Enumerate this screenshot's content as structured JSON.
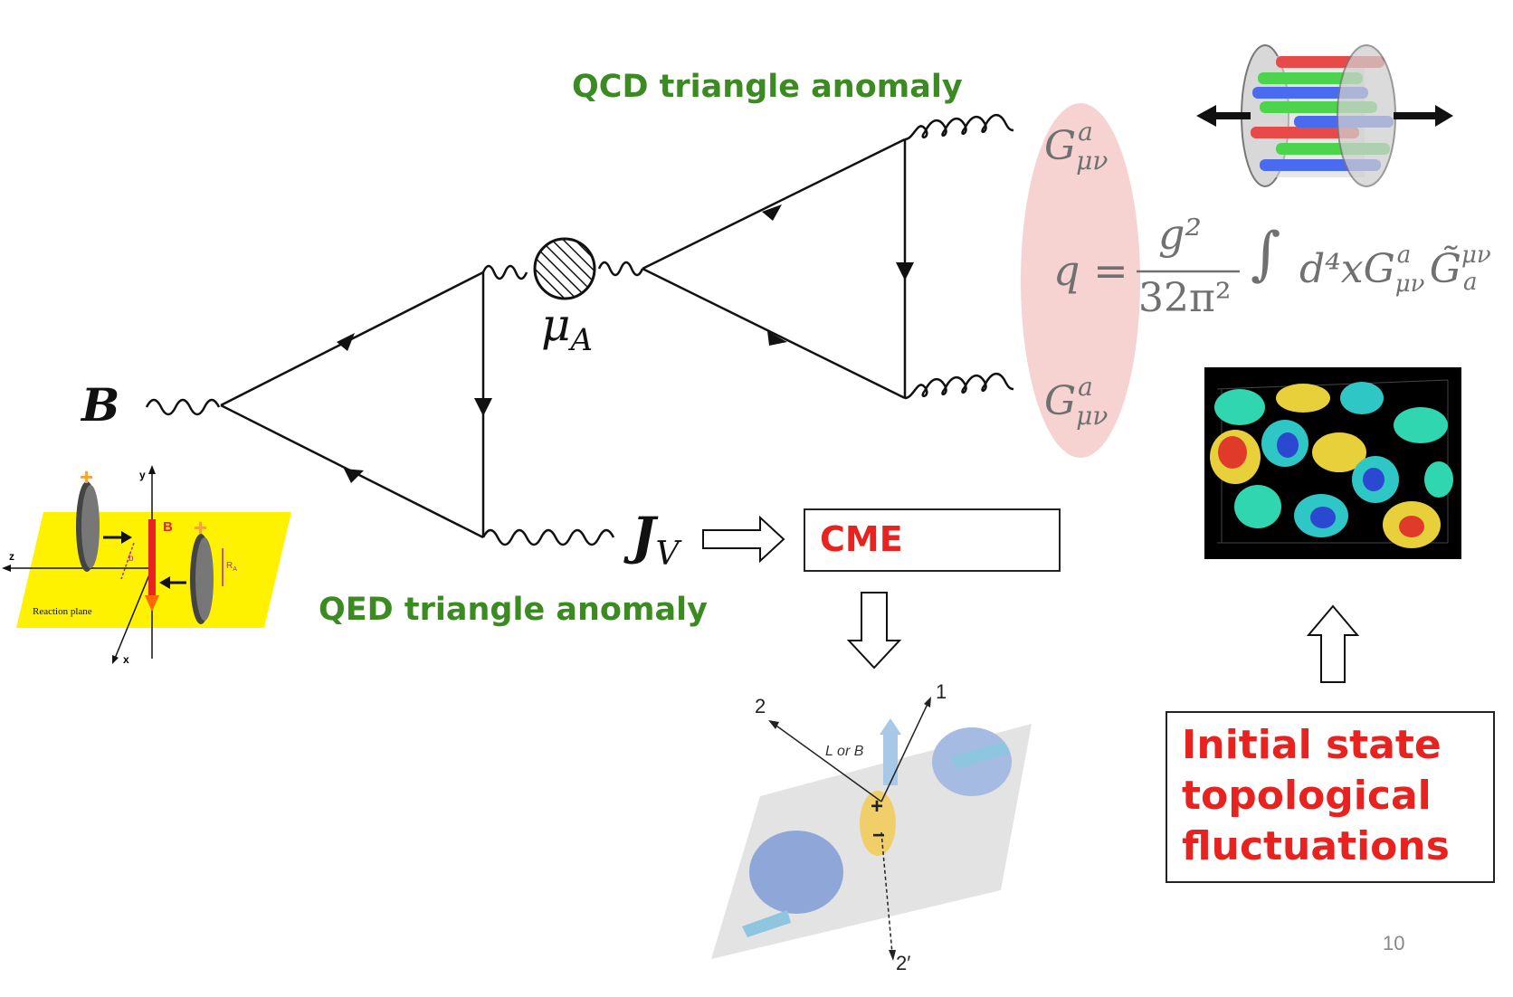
{
  "titles": {
    "qcd": "QCD triangle anomaly",
    "qed": "QED triangle anomaly"
  },
  "feynman": {
    "b_field": "B",
    "mu_A": "μ",
    "mu_A_sub": "A",
    "J_V": "J",
    "J_V_sub": "V",
    "gluon_label": "G",
    "gluon_sup": "a",
    "gluon_sub": "μν"
  },
  "formula": {
    "lhs": "q =",
    "numerator": "g²",
    "denominator": "32π²",
    "integral": "∫",
    "integrand": "d⁴xG",
    "integrand_sup": "a",
    "integrand_sub": "μν",
    "dual": "G̃",
    "dual_sup": "μν",
    "dual_sub": "a"
  },
  "cme_box": {
    "label": "CME"
  },
  "initial_state_box": {
    "label": "Initial state topological fluctuations"
  },
  "reaction_plane": {
    "label": "Reaction plane",
    "axis_y": "y",
    "axis_z": "z",
    "axis_x": "x",
    "b_label": "B",
    "impact_b": "b",
    "radius": "R",
    "radius_sub": "A",
    "charge_symbol": "+"
  },
  "separation_figure": {
    "axis1": "1",
    "axis2": "2",
    "axis2prime": "2′",
    "lorb": "L or B",
    "plus": "+",
    "minus": "−"
  },
  "page_number": "10",
  "colors": {
    "title_green": "#3b8a22",
    "cme_red": "#e8231f",
    "ellipse_pink": "#f6d3d1",
    "plane_yellow": "#fff200"
  }
}
